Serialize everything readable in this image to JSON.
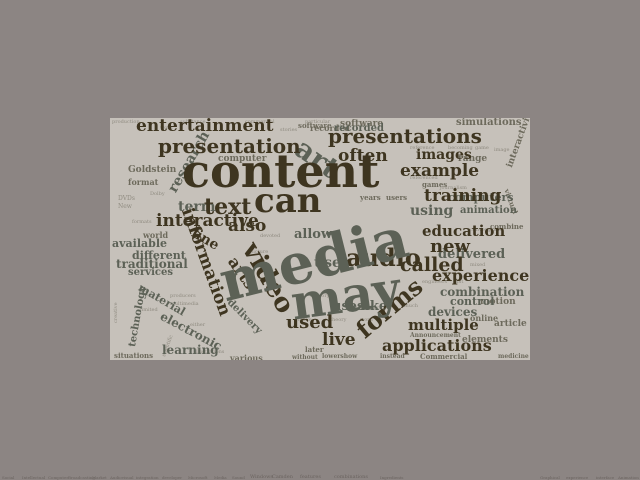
{
  "cloud": {
    "background": "#c6c1ba",
    "words": {
      "content": "content",
      "media": "media",
      "may": "may",
      "forms": "forms",
      "can": "can",
      "entertainment": "entertainment",
      "presentations": "presentations",
      "presentation": "presentation",
      "information": "information",
      "audio": "audio",
      "text": "text",
      "video": "video",
      "used": "used",
      "live": "live",
      "applications": "applications",
      "example": "example",
      "training": "training",
      "images": "images",
      "often": "often",
      "education": "education",
      "called": "called",
      "new": "new",
      "experience": "experience",
      "interactive": "interactive",
      "fine": "fine",
      "arts": "arts",
      "also": "also",
      "multiple": "multiple",
      "combination": "combination",
      "control": "control",
      "devices": "devices",
      "uses": "uses",
      "like": "like",
      "traditional": "traditional",
      "different": "different",
      "available": "available",
      "research": "research",
      "term": "term",
      "software": "software",
      "recorded": "recorded",
      "simulations": "simulations",
      "computer": "computer",
      "computers": "computers",
      "delivered": "delivered",
      "animation": "animation",
      "using": "using",
      "allow": "allow",
      "use": "use",
      "material": "material",
      "electronic": "electronic",
      "technology": "technology",
      "learning": "learning",
      "various": "various",
      "services": "services",
      "elements": "elements",
      "article": "article",
      "online": "online",
      "motion": "motion",
      "interactivity": "interactivity",
      "art": "art",
      "delivery": "delivery",
      "Goldstein": "Goldstein",
      "format": "format",
      "world": "world",
      "games": "games",
      "range": "range",
      "later": "later",
      "Commercial": "Commercial",
      "situations": "situations",
      "years": "years",
      "users": "users",
      "combine": "combine",
      "virtual": "virtual",
      "Announcement": "Announcement",
      "instead": "instead",
      "medicine": "medicine",
      "without": "without",
      "lowershow": "lowershow",
      "sensory": "sensory",
      "referenced": "referenced",
      "devoted": "devoted",
      "Dolby": "Dolby",
      "make": "make",
      "theory": "theory",
      "scientific": "scientific",
      "convergence": "convergence",
      "creative": "creative",
      "limited": "limited",
      "multimedia": "multimedia",
      "producers": "producers",
      "forms2": "particular",
      "reference": "reference",
      "journalism": "journalism",
      "picture": "picture",
      "word": "word",
      "mixed": "mixed",
      "graphics": "graphics",
      "illustrations": "illustrations",
      "either": "either",
      "formats": "formats",
      "commercial": "commercial",
      "production": "production",
      "work": "work",
      "substance": "substance",
      "stories": "stories",
      "game": "game",
      "engineers": "engineers",
      "just": "just",
      "becoming": "becoming",
      "much": "much",
      "image": "image",
      "DVDs": "DVDs",
      "New": "New"
    }
  },
  "footer_strip": [
    "Social",
    "Intellectual",
    "Computer",
    "Broadcasting",
    "Market",
    "Audiovisual",
    "integration",
    "developer",
    "Microsoft",
    "Media",
    "Sound",
    "Windows",
    "Camden",
    "features",
    "combinations",
    "Ingredients",
    "Graphical",
    "experience",
    "interface",
    "Animation"
  ]
}
